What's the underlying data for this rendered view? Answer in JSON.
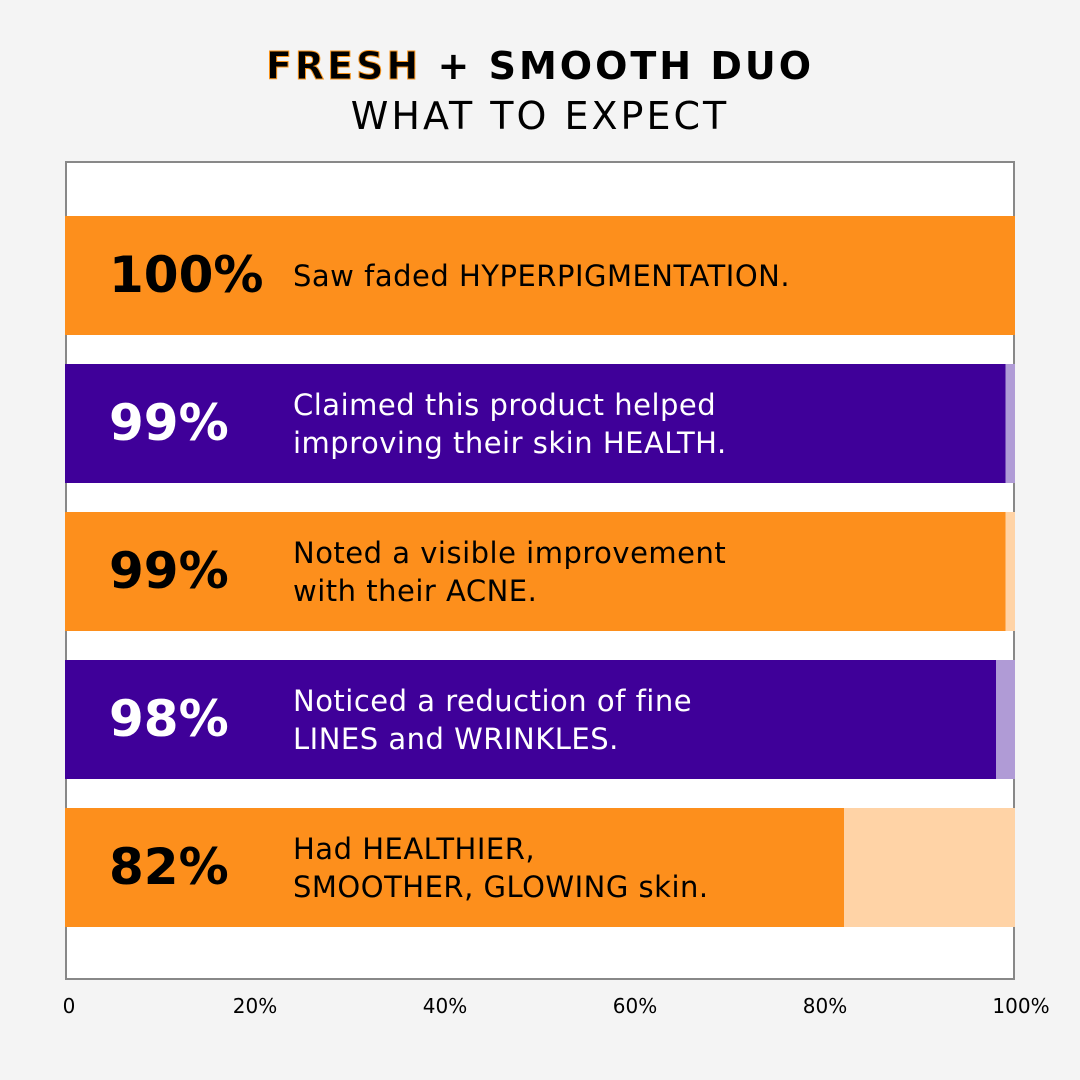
{
  "chart_data": {
    "type": "bar",
    "orientation": "horizontal",
    "title_highlight": "FRESH",
    "title_rest": " + SMOOTH DUO",
    "subtitle": "WHAT TO EXPECT",
    "xlim": [
      0,
      100
    ],
    "x_ticks": [
      "0",
      "20%",
      "40%",
      "60%",
      "80%",
      "100%"
    ],
    "grid": false,
    "bars": [
      {
        "value": 100,
        "label": "100%",
        "text": "Saw faded HYPERPIGMENTATION.",
        "color": "#fd8f1c",
        "remainder_color": "#ffd3a6",
        "text_color": "#000000"
      },
      {
        "value": 99,
        "label": "99%",
        "text": "Claimed this product helped\nimproving their skin HEALTH.",
        "color": "#3f0099",
        "remainder_color": "#b09bd6",
        "text_color": "#ffffff"
      },
      {
        "value": 99,
        "label": "99%",
        "text": "Noted a visible improvement\nwith their ACNE.",
        "color": "#fd8f1c",
        "remainder_color": "#ffd3a6",
        "text_color": "#000000"
      },
      {
        "value": 98,
        "label": "98%",
        "text": "Noticed a reduction of fine\nLINES and WRINKLES.",
        "color": "#3f0099",
        "remainder_color": "#b09bd6",
        "text_color": "#ffffff"
      },
      {
        "value": 82,
        "label": "82%",
        "text": "Had HEALTHIER,\nSMOOTHER, GLOWING skin.",
        "color": "#fd8f1c",
        "remainder_color": "#ffd3a6",
        "text_color": "#000000"
      }
    ]
  }
}
